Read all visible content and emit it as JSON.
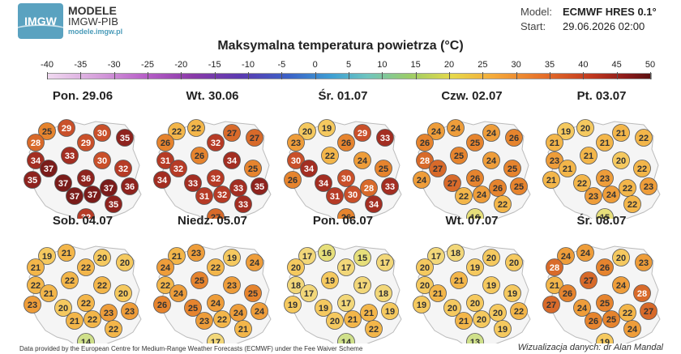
{
  "logo": {
    "mark": "IMGW",
    "title": "MODELE",
    "subtitle": "IMGW-PIB",
    "url": "modele.imgw.pl"
  },
  "model": {
    "model_key": "Model:",
    "model_value": "ECMWF HRES 0.1°",
    "start_key": "Start:",
    "start_value": "29.06.2026 02:00"
  },
  "title": "Maksymalna temperatura powietrza (°C)",
  "scale_labels": [
    "-40",
    "-35",
    "-30",
    "-25",
    "-20",
    "-15",
    "-10",
    "-5",
    "0",
    "5",
    "10",
    "15",
    "20",
    "25",
    "30",
    "35",
    "40",
    "45",
    "50"
  ],
  "panels": [
    {
      "title": "Pon. 29.06",
      "values": [
        29,
        25,
        30,
        28,
        29,
        35,
        33,
        30,
        34,
        37,
        32,
        36,
        35,
        37,
        37,
        36,
        37,
        37,
        35,
        32
      ]
    },
    {
      "title": "Wt. 30.06",
      "values": [
        22,
        22,
        27,
        26,
        32,
        27,
        26,
        34,
        31,
        32,
        25,
        32,
        34,
        33,
        33,
        35,
        31,
        32,
        33,
        27
      ]
    },
    {
      "title": "Śr. 01.07",
      "values": [
        19,
        20,
        29,
        23,
        26,
        33,
        22,
        24,
        30,
        34,
        25,
        30,
        26,
        34,
        28,
        33,
        31,
        30,
        34,
        26
      ]
    },
    {
      "title": "Czw. 02.07",
      "values": [
        24,
        24,
        24,
        26,
        25,
        26,
        25,
        24,
        28,
        27,
        25,
        26,
        24,
        27,
        26,
        25,
        22,
        24,
        22,
        16
      ]
    },
    {
      "title": "Pt. 03.07",
      "values": [
        20,
        19,
        21,
        21,
        21,
        22,
        21,
        20,
        23,
        21,
        22,
        23,
        21,
        22,
        22,
        23,
        23,
        24,
        22,
        15
      ]
    },
    {
      "title": "Sob. 04.07",
      "values": [
        21,
        19,
        20,
        21,
        22,
        20,
        22,
        22,
        22,
        21,
        20,
        22,
        23,
        20,
        23,
        23,
        21,
        22,
        22,
        14
      ]
    },
    {
      "title": "Niedz. 05.07",
      "values": [
        23,
        21,
        19,
        24,
        22,
        24,
        25,
        23,
        22,
        24,
        25,
        24,
        26,
        25,
        24,
        24,
        23,
        22,
        21,
        17
      ]
    },
    {
      "title": "Pon. 06.07",
      "values": [
        16,
        17,
        15,
        20,
        17,
        17,
        19,
        17,
        18,
        17,
        18,
        17,
        19,
        19,
        21,
        19,
        20,
        21,
        22,
        14
      ]
    },
    {
      "title": "Wt. 07.07",
      "values": [
        18,
        17,
        20,
        20,
        19,
        20,
        21,
        19,
        20,
        21,
        19,
        20,
        19,
        20,
        20,
        22,
        21,
        20,
        19,
        13
      ]
    },
    {
      "title": "Śr. 08.07",
      "values": [
        24,
        24,
        20,
        28,
        26,
        23,
        27,
        24,
        21,
        26,
        28,
        25,
        27,
        24,
        22,
        27,
        26,
        25,
        24,
        19
      ]
    }
  ],
  "footer": {
    "left": "Data provided by the European Centre for Medium-Range Weather Forecasts (ECMWF) under the Fee Waiver Scheme",
    "right": "Wizualizacja danych: dr Alan Mandal"
  }
}
